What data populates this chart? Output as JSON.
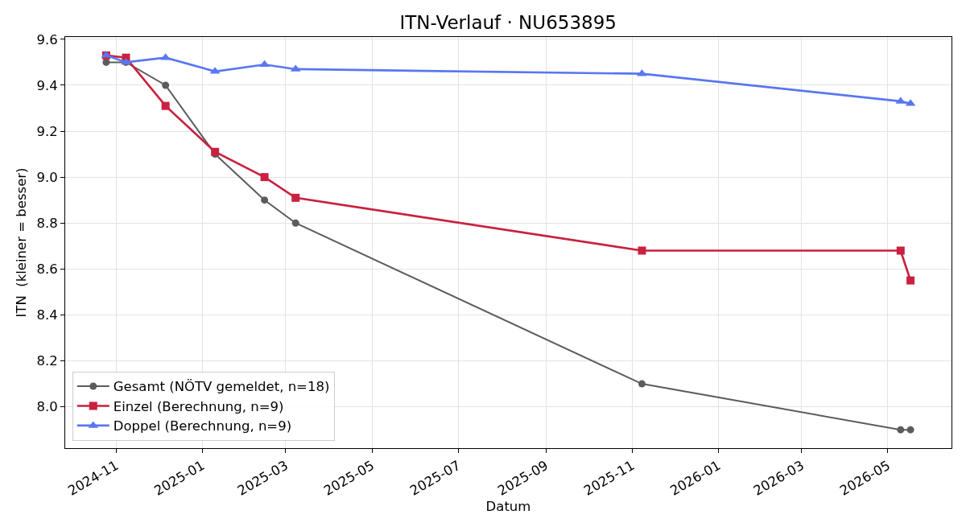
{
  "chart_data": {
    "type": "line",
    "title": "ITN-Verlauf · NU653895",
    "xlabel": "Datum",
    "ylabel": "ITN  (kleiner = besser)",
    "x": [
      "2024-10-25",
      "2024-11-08",
      "2024-12-06",
      "2025-01-10",
      "2025-02-14",
      "2025-03-08",
      "2025-11-08",
      "2026-05-10",
      "2026-05-17"
    ],
    "series": [
      {
        "name": "Gesamt (NÖTV gemeldet, n=18)",
        "color": "#5c5c5c",
        "marker": "circle",
        "values": [
          9.5,
          9.5,
          9.4,
          9.1,
          8.9,
          8.8,
          8.1,
          7.9,
          7.9
        ]
      },
      {
        "name": "Einzel (Berechnung, n=9)",
        "color": "#c9213f",
        "marker": "square",
        "values": [
          9.53,
          9.52,
          9.31,
          9.11,
          9.0,
          8.91,
          8.68,
          8.68,
          8.55
        ]
      },
      {
        "name": "Doppel (Berechnung, n=9)",
        "color": "#5877f0",
        "marker": "triangle",
        "values": [
          9.53,
          9.5,
          9.52,
          9.46,
          9.49,
          9.47,
          9.45,
          9.33,
          9.32
        ]
      }
    ],
    "xlim": [
      "2024-09-26",
      "2026-06-15"
    ],
    "xticks": [
      "2024-11",
      "2025-01",
      "2025-03",
      "2025-05",
      "2025-07",
      "2025-09",
      "2025-11",
      "2026-01",
      "2026-03",
      "2026-05"
    ],
    "ylim": [
      7.82,
      9.61
    ],
    "yticks": [
      {
        "value": 8,
        "label": "8.0"
      },
      8.2,
      8.4,
      8.6,
      8.8,
      {
        "value": 9,
        "label": "9.0"
      },
      9.2,
      9.4,
      9.6
    ],
    "grid": true,
    "legend": "bottom left",
    "line_style": "solid"
  }
}
